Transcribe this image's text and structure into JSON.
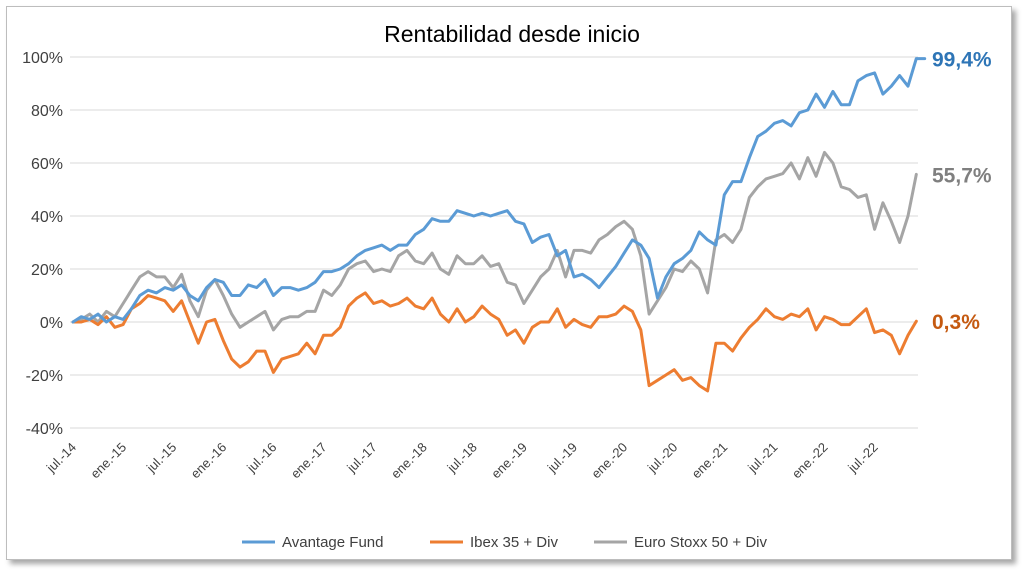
{
  "chart_data": {
    "type": "line",
    "title": "Rentabilidad desde inicio",
    "xlabel": "",
    "ylabel": "",
    "ylim": [
      -40,
      100
    ],
    "y_ticks": [
      "100%",
      "80%",
      "60%",
      "40%",
      "20%",
      "0%",
      "-20%",
      "-40%"
    ],
    "x_tick_labels": [
      "jul.-14",
      "ene.-15",
      "jul.-15",
      "ene.-16",
      "jul.-16",
      "ene.-17",
      "jul.-17",
      "ene.-18",
      "jul.-18",
      "ene.-19",
      "jul.-19",
      "ene.-20",
      "jul.-20",
      "ene.-21",
      "jul.-21",
      "ene.-22",
      "jul.-22"
    ],
    "grid": true,
    "legend_position": "bottom",
    "series": [
      {
        "name": "Avantage Fund",
        "color": "#5B9BD5",
        "end_label": "99,4%",
        "end_label_color": "#2E75B6",
        "values": [
          0,
          2,
          1,
          3,
          0,
          2,
          1,
          5,
          10,
          12,
          11,
          13,
          12,
          14,
          10,
          8,
          13,
          16,
          15,
          10,
          10,
          14,
          13,
          16,
          10,
          13,
          13,
          12,
          13,
          15,
          19,
          19,
          20,
          22,
          25,
          27,
          28,
          29,
          27,
          29,
          29,
          33,
          35,
          39,
          38,
          38,
          42,
          41,
          40,
          41,
          40,
          41,
          42,
          38,
          37,
          30,
          32,
          33,
          25,
          27,
          17,
          18,
          16,
          13,
          17,
          21,
          26,
          31,
          29,
          24,
          9,
          17,
          22,
          24,
          27,
          34,
          31,
          29,
          48,
          53,
          53,
          62,
          70,
          72,
          75,
          76,
          74,
          79,
          80,
          86,
          81,
          87,
          82,
          82,
          91,
          93,
          94,
          86,
          89,
          93,
          89,
          99.4,
          99.4
        ]
      },
      {
        "name": "Ibex 35 + Div",
        "color": "#ED7D31",
        "end_label": "0,3%",
        "end_label_color": "#C55A11",
        "values": [
          0,
          0,
          1,
          -1,
          2,
          -2,
          -1,
          5,
          7,
          10,
          9,
          8,
          4,
          8,
          0,
          -8,
          0,
          1,
          -7,
          -14,
          -17,
          -15,
          -11,
          -11,
          -19,
          -14,
          -13,
          -12,
          -8,
          -12,
          -5,
          -5,
          -2,
          6,
          9,
          11,
          7,
          8,
          6,
          7,
          9,
          6,
          5,
          9,
          3,
          0,
          5,
          0,
          2,
          6,
          3,
          1,
          -5,
          -3,
          -8,
          -2,
          0,
          0,
          5,
          -2,
          1,
          -1,
          -2,
          2,
          2,
          3,
          6,
          4,
          -3,
          -24,
          -22,
          -20,
          -18,
          -22,
          -21,
          -24,
          -26,
          -8,
          -8,
          -11,
          -6,
          -2,
          1,
          5,
          2,
          1,
          3,
          2,
          5,
          -3,
          2,
          1,
          -1,
          -1,
          2,
          5,
          -4,
          -3,
          -5,
          -12,
          -5,
          0.3
        ]
      },
      {
        "name": "Euro Stoxx 50 + Div",
        "color": "#A5A5A5",
        "end_label": "55,7%",
        "end_label_color": "#7F7F7F",
        "values": [
          0,
          1,
          3,
          0,
          4,
          2,
          7,
          12,
          17,
          19,
          17,
          17,
          13,
          18,
          8,
          2,
          12,
          16,
          10,
          3,
          -2,
          0,
          2,
          4,
          -3,
          1,
          2,
          2,
          4,
          4,
          12,
          10,
          14,
          20,
          22,
          23,
          19,
          20,
          19,
          25,
          27,
          23,
          22,
          26,
          20,
          18,
          25,
          22,
          22,
          25,
          21,
          22,
          15,
          14,
          7,
          12,
          17,
          20,
          27,
          17,
          27,
          27,
          26,
          31,
          33,
          36,
          38,
          35,
          25,
          3,
          8,
          13,
          20,
          19,
          23,
          20,
          11,
          31,
          33,
          30,
          35,
          47,
          51,
          54,
          55,
          56,
          60,
          54,
          62,
          55,
          64,
          60,
          51,
          50,
          47,
          48,
          35,
          45,
          38,
          30,
          40,
          55.7
        ]
      }
    ]
  }
}
